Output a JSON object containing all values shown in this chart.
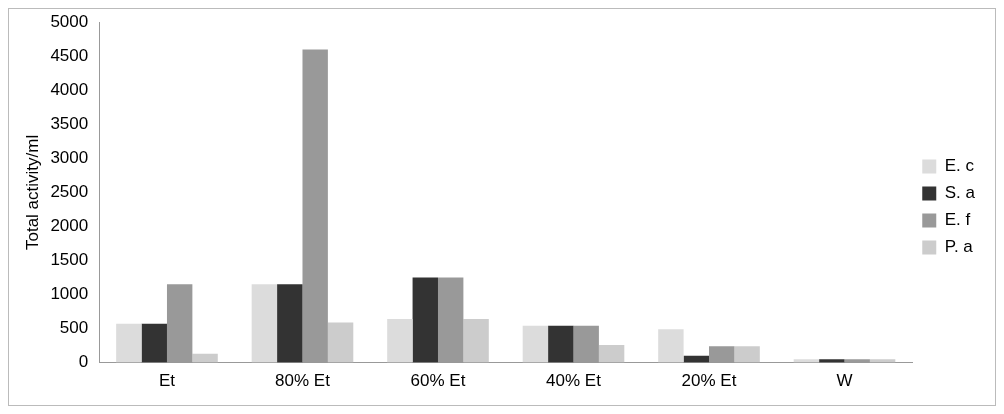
{
  "chart_data": {
    "type": "bar",
    "ylabel": "Total activity/ml",
    "categories": [
      "Et",
      "80% Et",
      "60% Et",
      "40% Et",
      "20% Et",
      "W"
    ],
    "series": [
      {
        "name": "E. c",
        "color": "#dcdcdc",
        "values": [
          570,
          1150,
          640,
          540,
          490,
          50
        ]
      },
      {
        "name": "S. a",
        "color": "#333333",
        "values": [
          570,
          1150,
          1250,
          540,
          100,
          50
        ]
      },
      {
        "name": "E. f",
        "color": "#999999",
        "values": [
          1150,
          4600,
          1250,
          540,
          240,
          50
        ]
      },
      {
        "name": "P. a",
        "color": "#cccccc",
        "values": [
          130,
          590,
          640,
          260,
          240,
          50
        ]
      }
    ],
    "ylim": [
      0,
      5000
    ],
    "yticks": [
      0,
      500,
      1000,
      1500,
      2000,
      2500,
      3000,
      3500,
      4000,
      4500,
      5000
    ],
    "grid": false,
    "legend": "right"
  }
}
